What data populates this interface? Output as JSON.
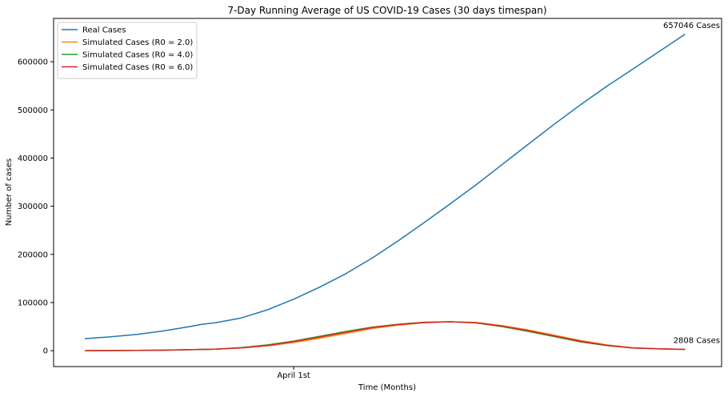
{
  "chart_data": {
    "type": "line",
    "title": "7-Day Running Average of US COVID-19 Cases (30 days timespan)",
    "xlabel": "Time (Months)",
    "ylabel": "Number of cases",
    "xlim": [
      -2.4,
      48.8
    ],
    "ylim": [
      -33000,
      690000
    ],
    "x_ticks": [
      {
        "x": 16,
        "label": "April 1st"
      }
    ],
    "y_ticks": [
      {
        "value": 0,
        "label": "0"
      },
      {
        "value": 100000,
        "label": "100000"
      },
      {
        "value": 200000,
        "label": "200000"
      },
      {
        "value": 300000,
        "label": "300000"
      },
      {
        "value": 400000,
        "label": "400000"
      },
      {
        "value": 500000,
        "label": "500000"
      },
      {
        "value": 600000,
        "label": "600000"
      }
    ],
    "grid": false,
    "legend_position": "top-left",
    "series": [
      {
        "name": "Real Cases",
        "color": "#1f77b4",
        "x": [
          0,
          2,
          4,
          6,
          8,
          9,
          10,
          12,
          14,
          16,
          18,
          20,
          22,
          24,
          26,
          28,
          30,
          32,
          34,
          36,
          38,
          40,
          42,
          44,
          46
        ],
        "y": [
          25000,
          29000,
          34000,
          41000,
          50000,
          55000,
          58000,
          68000,
          85000,
          107000,
          132000,
          160000,
          192000,
          228000,
          266000,
          305000,
          345000,
          387000,
          429000,
          471000,
          511000,
          549000,
          585000,
          621000,
          657046
        ]
      },
      {
        "name": "Simulated Cases (R0 = 2.0)",
        "color": "#ff7f0e",
        "x": [
          0,
          2,
          4,
          6,
          8,
          10,
          12,
          14,
          16,
          18,
          20,
          22,
          24,
          26,
          28,
          30,
          32,
          34,
          36,
          38,
          40,
          42,
          44,
          46
        ],
        "y": [
          0,
          200,
          500,
          1000,
          2000,
          3000,
          5500,
          10000,
          17000,
          26000,
          36000,
          46000,
          53000,
          58000,
          60000,
          58500,
          52000,
          43000,
          32000,
          21000,
          12000,
          6000,
          4000,
          2808
        ]
      },
      {
        "name": "Simulated Cases (R0 = 4.0)",
        "color": "#2ca02c",
        "x": [
          0,
          2,
          4,
          6,
          8,
          10,
          12,
          14,
          16,
          18,
          20,
          22,
          24,
          26,
          28,
          30,
          32,
          34,
          36,
          38,
          40,
          42,
          44,
          46
        ],
        "y": [
          0,
          200,
          500,
          1000,
          2000,
          3200,
          6500,
          12000,
          20000,
          30000,
          40000,
          49000,
          55000,
          59000,
          60000,
          57500,
          50000,
          40000,
          29000,
          18000,
          10500,
          5500,
          3800,
          2808
        ]
      },
      {
        "name": "Simulated Cases (R0 = 6.0)",
        "color": "#d62728",
        "x": [
          0,
          2,
          4,
          6,
          8,
          10,
          12,
          14,
          16,
          18,
          20,
          22,
          24,
          26,
          28,
          30,
          32,
          34,
          36,
          38,
          40,
          42,
          44,
          46
        ],
        "y": [
          0,
          200,
          500,
          1000,
          2000,
          3100,
          6000,
          11000,
          19000,
          28500,
          38500,
          48000,
          54500,
          58500,
          60000,
          58000,
          51000,
          41500,
          30500,
          19500,
          11000,
          5800,
          3900,
          2808
        ]
      }
    ],
    "annotations": [
      {
        "text": "657046 Cases",
        "x": 46,
        "y": 657046
      },
      {
        "text": "2808 Cases",
        "x": 46,
        "y": 2808
      }
    ]
  }
}
